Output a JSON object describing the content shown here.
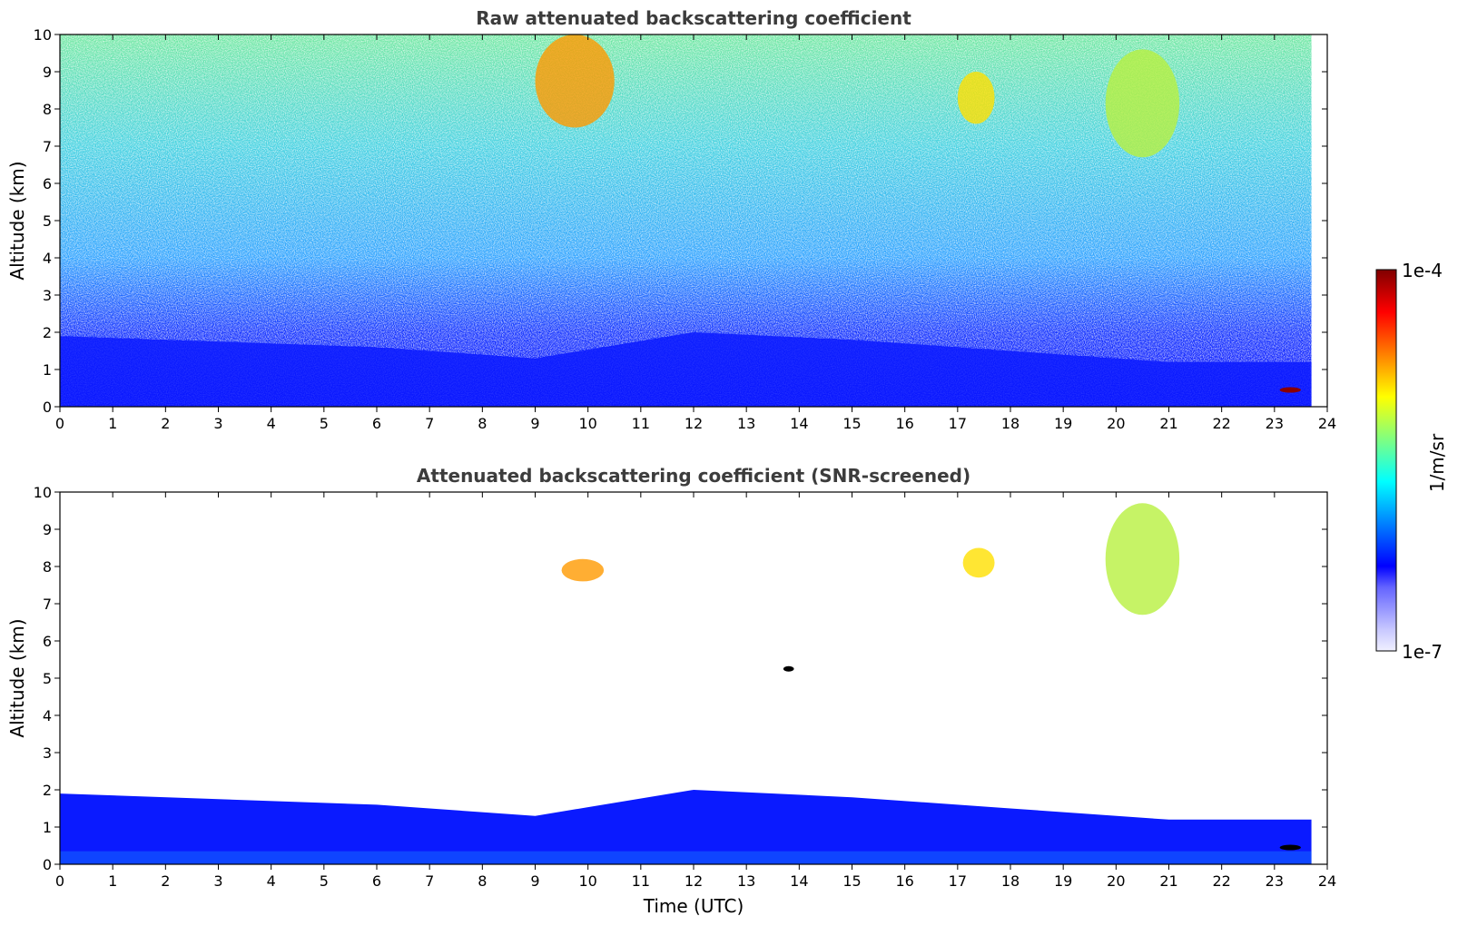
{
  "colors": {
    "scale": [
      "#f0f0ff",
      "#c8c8ff",
      "#9696ff",
      "#6464ff",
      "#0000ff",
      "#0040ff",
      "#0080ff",
      "#00c0ff",
      "#00ffff",
      "#40ffc0",
      "#80ff80",
      "#c0ff40",
      "#ffff00",
      "#ffc000",
      "#ff8000",
      "#ff4000",
      "#ff0000",
      "#c00000",
      "#800000"
    ]
  },
  "colorbar": {
    "max_label": "1e-4",
    "min_label": "1e-7",
    "label": "1/m/sr"
  },
  "chart_data": [
    {
      "type": "heatmap",
      "title": "Raw attenuated backscattering coefficient",
      "xlabel": "",
      "ylabel": "Altitude (km)",
      "xlim": [
        0,
        24
      ],
      "ylim": [
        0,
        10
      ],
      "xticks": [
        "0",
        "1",
        "2",
        "3",
        "4",
        "5",
        "6",
        "7",
        "8",
        "9",
        "10",
        "11",
        "12",
        "13",
        "14",
        "15",
        "16",
        "17",
        "18",
        "19",
        "20",
        "21",
        "22",
        "23",
        "24"
      ],
      "yticks": [
        "0",
        "1",
        "2",
        "3",
        "4",
        "5",
        "6",
        "7",
        "8",
        "9",
        "10"
      ],
      "data_end_hour": 23.7,
      "features": [
        {
          "kind": "boundary_layer",
          "x": [
            0,
            6,
            9,
            12,
            15,
            18,
            21,
            23.7
          ],
          "top_km": [
            1.9,
            1.6,
            1.3,
            2.0,
            1.8,
            1.5,
            1.2,
            1.2
          ]
        },
        {
          "kind": "cirrus",
          "x": [
            9,
            10.5
          ],
          "y": [
            7.5,
            10
          ],
          "level": "orange"
        },
        {
          "kind": "cirrus",
          "x": [
            17,
            17.7
          ],
          "y": [
            7.6,
            9
          ],
          "level": "yellow"
        },
        {
          "kind": "cirrus",
          "x": [
            19.8,
            21.2
          ],
          "y": [
            6.7,
            9.6
          ],
          "level": "yellow-green"
        },
        {
          "kind": "cloud",
          "x": [
            23.1,
            23.5
          ],
          "y": [
            0.4,
            0.5
          ],
          "level": "dark-red"
        }
      ]
    },
    {
      "type": "heatmap",
      "title": "Attenuated backscattering coefficient (SNR-screened)",
      "xlabel": "Time (UTC)",
      "ylabel": "Altitude (km)",
      "xlim": [
        0,
        24
      ],
      "ylim": [
        0,
        10
      ],
      "xticks": [
        "0",
        "1",
        "2",
        "3",
        "4",
        "5",
        "6",
        "7",
        "8",
        "9",
        "10",
        "11",
        "12",
        "13",
        "14",
        "15",
        "16",
        "17",
        "18",
        "19",
        "20",
        "21",
        "22",
        "23",
        "24"
      ],
      "yticks": [
        "0",
        "1",
        "2",
        "3",
        "4",
        "5",
        "6",
        "7",
        "8",
        "9",
        "10"
      ],
      "data_end_hour": 23.7,
      "features": [
        {
          "kind": "boundary_layer",
          "x": [
            0,
            6,
            9,
            12,
            15,
            18,
            21,
            23.7
          ],
          "top_km": [
            1.9,
            1.6,
            1.3,
            2.0,
            1.8,
            1.5,
            1.2,
            1.2
          ]
        },
        {
          "kind": "cirrus",
          "x": [
            9.5,
            10.3
          ],
          "y": [
            7.6,
            8.2
          ],
          "level": "orange"
        },
        {
          "kind": "cirrus",
          "x": [
            17.1,
            17.7
          ],
          "y": [
            7.7,
            8.5
          ],
          "level": "yellow"
        },
        {
          "kind": "cirrus",
          "x": [
            19.8,
            21.2
          ],
          "y": [
            6.7,
            9.7
          ],
          "level": "yellow-green"
        },
        {
          "kind": "cloud",
          "x": [
            13.7,
            13.9
          ],
          "y": [
            5.2,
            5.3
          ],
          "level": "black"
        },
        {
          "kind": "cloud",
          "x": [
            23.1,
            23.5
          ],
          "y": [
            0.4,
            0.5
          ],
          "level": "black"
        }
      ]
    }
  ]
}
